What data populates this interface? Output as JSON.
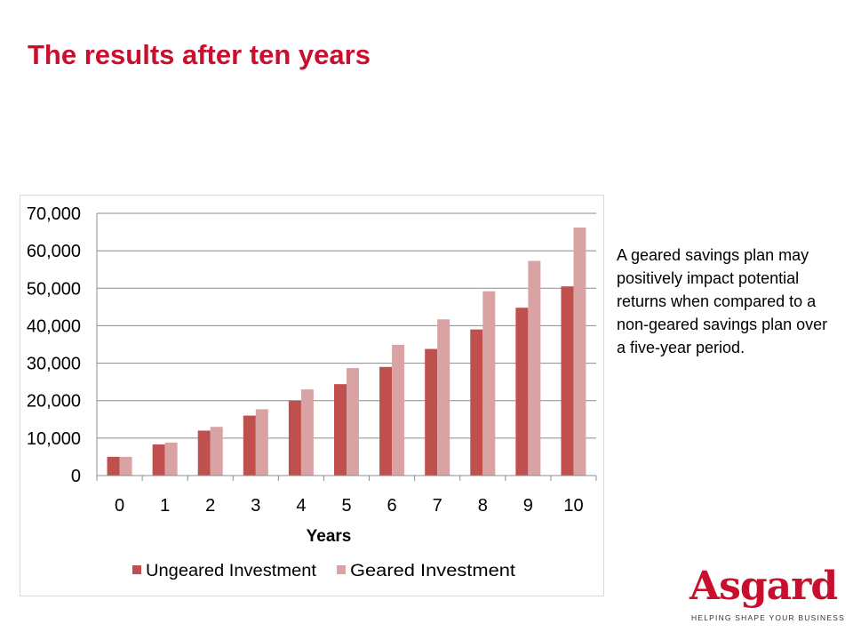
{
  "title": "The results after ten years",
  "description": "A geared savings plan may positively impact potential returns when compared to a non-geared savings plan over a five-year period.",
  "logo": {
    "name": "Asgard",
    "tagline": "HELPING SHAPE YOUR BUSINESS"
  },
  "colors": {
    "title": "#c8102e",
    "ungeared": "#c0504d",
    "geared": "#d9a3a3",
    "gridline": "#8c8c8c"
  },
  "chart_data": {
    "type": "bar",
    "title": "",
    "xlabel": "Years",
    "ylabel": "",
    "categories": [
      "0",
      "1",
      "2",
      "3",
      "4",
      "5",
      "6",
      "7",
      "8",
      "9",
      "10"
    ],
    "y_ticks": [
      "0",
      "10,000",
      "20,000",
      "30,000",
      "40,000",
      "50,000",
      "60,000",
      "70,000"
    ],
    "ylim": [
      0,
      70000
    ],
    "grid": true,
    "legend_position": "bottom",
    "series": [
      {
        "name": "Ungeared Investment",
        "color": "#c0504d",
        "values": [
          5000,
          8300,
          12000,
          16000,
          20000,
          24400,
          29000,
          33800,
          39000,
          44800,
          50500
        ]
      },
      {
        "name": "Geared Investment",
        "color": "#d9a3a3",
        "values": [
          5000,
          8800,
          13000,
          17700,
          23000,
          28700,
          34900,
          41700,
          49200,
          57300,
          66200
        ]
      }
    ]
  }
}
